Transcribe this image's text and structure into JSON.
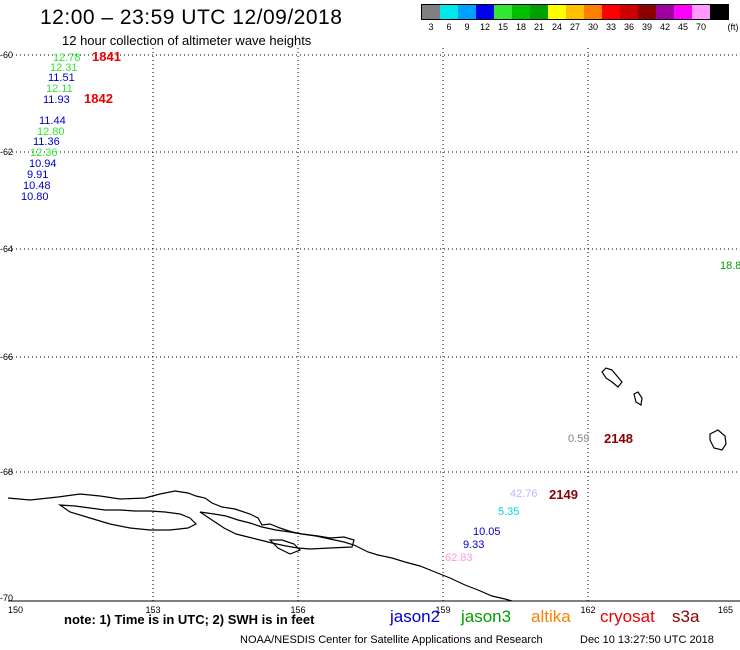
{
  "header": {
    "title": "12:00 – 23:59 UTC 12/09/2018",
    "subtitle": "12 hour collection of altimeter wave heights"
  },
  "color_scale": {
    "unit": "(ft)",
    "entries": [
      {
        "label": "3",
        "color": "#808080"
      },
      {
        "label": "6",
        "color": "#00e8e8"
      },
      {
        "label": "9",
        "color": "#00a0ff"
      },
      {
        "label": "12",
        "color": "#0000f0"
      },
      {
        "label": "15",
        "color": "#33e633"
      },
      {
        "label": "18",
        "color": "#00c000"
      },
      {
        "label": "21",
        "color": "#00a000"
      },
      {
        "label": "24",
        "color": "#ffff00"
      },
      {
        "label": "27",
        "color": "#ffc000"
      },
      {
        "label": "30",
        "color": "#ff8000"
      },
      {
        "label": "33",
        "color": "#ff0000"
      },
      {
        "label": "36",
        "color": "#cc0000"
      },
      {
        "label": "39",
        "color": "#8b0000"
      },
      {
        "label": "42",
        "color": "#a000a0"
      },
      {
        "label": "45",
        "color": "#ff00ff"
      },
      {
        "label": "70",
        "color": "#ff99ff"
      },
      {
        "label": "",
        "color": "#000000"
      }
    ]
  },
  "map": {
    "lat_labels": [
      "-60",
      "-62",
      "-64",
      "-66",
      "-68",
      "-70"
    ],
    "lon_labels": [
      "150",
      "153",
      "156",
      "159",
      "162",
      "165"
    ]
  },
  "observations": [
    {
      "text": "12.78",
      "color": "#33e633"
    },
    {
      "text": "12.31",
      "color": "#33e633"
    },
    {
      "text": "11.51",
      "color": "#0000c8"
    },
    {
      "text": "12.11",
      "color": "#33e633"
    },
    {
      "text": "11.93",
      "color": "#0000c8"
    },
    {
      "text": "11.44",
      "color": "#0000c8"
    },
    {
      "text": "12.80",
      "color": "#33e633"
    },
    {
      "text": "11.36",
      "color": "#0000c8"
    },
    {
      "text": "12.36",
      "color": "#33e633"
    },
    {
      "text": "10.94",
      "color": "#0000c8"
    },
    {
      "text": "9.91",
      "color": "#0000c8"
    },
    {
      "text": "10.48",
      "color": "#0000c8"
    },
    {
      "text": "10.80",
      "color": "#0000c8"
    },
    {
      "text": "18.8",
      "color": "#00a000"
    },
    {
      "text": "0.59",
      "color": "#808080"
    },
    {
      "text": "42.76",
      "color": "#b8b8ff"
    },
    {
      "text": "5.35",
      "color": "#00d8d8"
    },
    {
      "text": "10.05",
      "color": "#0000c8"
    },
    {
      "text": "9.33",
      "color": "#0000c8"
    },
    {
      "text": "62.83",
      "color": "#ff99dd"
    }
  ],
  "passes": [
    {
      "text": "1841",
      "color": "#ee0000"
    },
    {
      "text": "1842",
      "color": "#ee0000"
    },
    {
      "text": "2148",
      "color": "#8b0000"
    },
    {
      "text": "2149",
      "color": "#8b0000"
    }
  ],
  "footer": {
    "note": "note:  1) Time is in UTC;  2) SWH is in feet",
    "satellites": [
      {
        "name": "jason2",
        "color": "#0000cc"
      },
      {
        "name": "jason3",
        "color": "#00a000"
      },
      {
        "name": "altika",
        "color": "#ff8000"
      },
      {
        "name": "cryosat",
        "color": "#ee0000"
      },
      {
        "name": "s3a",
        "color": "#8b0000"
      }
    ],
    "credit": "NOAA/NESDIS Center for Satellite Applications and Research",
    "timestamp": "Dec 10 13:27:50 UTC 2018"
  }
}
